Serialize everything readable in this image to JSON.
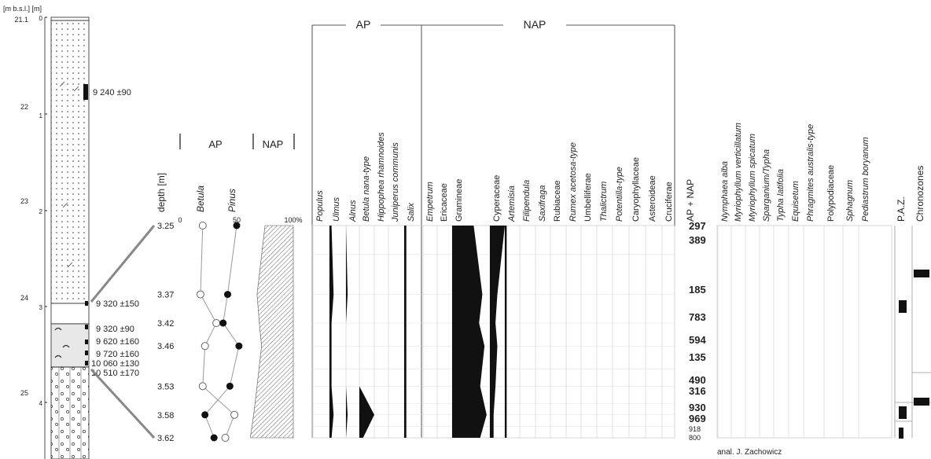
{
  "chart_data": {
    "type": "pollen-diagram",
    "core": {
      "depth_axis_label": "[m b.s.l.] [m]",
      "absolute_depths": [
        "21.1",
        "22",
        "23",
        "24",
        "25"
      ],
      "core_depths": [
        "0",
        "1",
        "2",
        "3",
        "4"
      ],
      "dates": [
        "9 240 ±90",
        "9 320 ±150",
        "9 320 ±90",
        "9 620 ±160",
        "9 720 ±160",
        "10 060 ±130",
        "10 510 ±170"
      ]
    },
    "ap_nap": {
      "ap_label": "AP",
      "nap_label": "NAP",
      "depth_label": "depth [m]",
      "betula_label": "Betula",
      "pinus_label": "Pinus",
      "ticks": [
        "0",
        "50",
        "100%"
      ],
      "depth_labels": [
        "3.25",
        "3.37",
        "3.42",
        "3.46",
        "3.53",
        "3.58",
        "3.62"
      ],
      "depth_values": [
        3.25,
        3.37,
        3.42,
        3.46,
        3.53,
        3.58,
        3.62
      ],
      "betula": [
        {
          "depth": 3.25,
          "value": 20
        },
        {
          "depth": 3.37,
          "value": 18
        },
        {
          "depth": 3.42,
          "value": 32
        },
        {
          "depth": 3.46,
          "value": 22
        },
        {
          "depth": 3.53,
          "value": 20
        },
        {
          "depth": 3.58,
          "value": 48
        },
        {
          "depth": 3.62,
          "value": 40
        }
      ],
      "pinus": [
        {
          "depth": 3.25,
          "value": 50
        },
        {
          "depth": 3.37,
          "value": 42
        },
        {
          "depth": 3.42,
          "value": 38
        },
        {
          "depth": 3.46,
          "value": 52
        },
        {
          "depth": 3.53,
          "value": 44
        },
        {
          "depth": 3.58,
          "value": 22
        },
        {
          "depth": 3.62,
          "value": 30
        }
      ],
      "ap_percent": [
        55,
        48,
        50,
        52,
        48,
        45,
        42
      ]
    },
    "groups": {
      "ap": "AP",
      "nap": "NAP"
    },
    "taxa": [
      {
        "name": "Populus",
        "italic": true,
        "group": "AP",
        "values": [
          0,
          0,
          0,
          0,
          0,
          0,
          0
        ]
      },
      {
        "name": "Ulmus",
        "italic": true,
        "group": "AP",
        "values": [
          1,
          2,
          1,
          1,
          1,
          2,
          1
        ]
      },
      {
        "name": "Alnus",
        "italic": true,
        "group": "AP",
        "values": [
          0,
          1,
          0,
          0,
          0,
          1,
          0
        ]
      },
      {
        "name": "Betula nana-type",
        "italic": true,
        "group": "AP",
        "values": [
          0,
          0,
          0,
          0,
          0,
          8,
          2
        ]
      },
      {
        "name": "Hippophea rhamnoides",
        "italic": true,
        "group": "AP",
        "values": [
          0,
          0,
          0,
          0,
          0,
          0,
          0
        ]
      },
      {
        "name": "Juniperus communis",
        "italic": true,
        "group": "AP",
        "values": [
          0,
          0,
          0,
          0,
          0,
          0,
          0
        ]
      },
      {
        "name": "Salix",
        "italic": true,
        "group": "AP",
        "values": [
          1,
          1,
          1,
          1,
          1,
          1,
          1
        ]
      },
      {
        "name": "Empetrum",
        "italic": true,
        "group": "NAP",
        "values": [
          0,
          0,
          0,
          0,
          0,
          0,
          0
        ]
      },
      {
        "name": "Ericaceae",
        "italic": false,
        "group": "NAP",
        "values": [
          0,
          0,
          0,
          0,
          0,
          0,
          0
        ]
      },
      {
        "name": "Gramineae",
        "italic": false,
        "group": "NAP",
        "values": [
          20,
          28,
          25,
          30,
          26,
          32,
          26
        ]
      },
      {
        "name": "Cyperaceae",
        "italic": false,
        "group": "NAP",
        "values": [
          8,
          4,
          3,
          4,
          3,
          2,
          2
        ]
      },
      {
        "name": "Artemisia",
        "italic": true,
        "group": "NAP",
        "values": [
          1,
          1,
          1,
          1,
          1,
          1,
          1
        ]
      },
      {
        "name": "Filipendula",
        "italic": true,
        "group": "NAP",
        "values": [
          0,
          0,
          0,
          0,
          0,
          0,
          0
        ]
      },
      {
        "name": "Saxifraga",
        "italic": true,
        "group": "NAP",
        "values": [
          0,
          0,
          0,
          0,
          0,
          0,
          0
        ]
      },
      {
        "name": "Rubiaceae",
        "italic": false,
        "group": "NAP",
        "values": [
          0,
          0,
          0,
          0,
          0,
          0,
          0
        ]
      },
      {
        "name": "Rumex acetosa-type",
        "italic": true,
        "group": "NAP",
        "values": [
          0,
          0,
          0,
          0,
          0,
          0,
          0
        ]
      },
      {
        "name": "Umbelliferae",
        "italic": false,
        "group": "NAP",
        "values": [
          0,
          0,
          0,
          0,
          0,
          0,
          0
        ]
      },
      {
        "name": "Thalictrum",
        "italic": true,
        "group": "NAP",
        "values": [
          0,
          0,
          0,
          0,
          0,
          0,
          0
        ]
      },
      {
        "name": "Potentilla-type",
        "italic": true,
        "group": "NAP",
        "values": [
          0,
          0,
          0,
          0,
          0,
          0,
          0
        ]
      },
      {
        "name": "Caryophyllaceae",
        "italic": false,
        "group": "NAP",
        "values": [
          0,
          0,
          0,
          0,
          0,
          0,
          0
        ]
      },
      {
        "name": "Asteroideae",
        "italic": false,
        "group": "NAP",
        "values": [
          0,
          0,
          0,
          0,
          0,
          0,
          0
        ]
      },
      {
        "name": "Cruciferae",
        "italic": false,
        "group": "NAP",
        "values": [
          0,
          0,
          0,
          0,
          0,
          0,
          0
        ]
      }
    ],
    "sums": {
      "label": "AP + NAP",
      "values": [
        "297",
        "389",
        "185",
        "783",
        "594",
        "135",
        "490",
        "316",
        "930",
        "969",
        "918",
        "800"
      ]
    },
    "aquatics": [
      {
        "name": "Nymphaea alba",
        "italic": true
      },
      {
        "name": "Myriophyllum verticillatum",
        "italic": true
      },
      {
        "name": "Myriophyllum spicatum",
        "italic": true
      },
      {
        "name": "Sparganium/Typha",
        "italic": true
      },
      {
        "name": "Typha latifolia",
        "italic": true
      },
      {
        "name": "Equisetum",
        "italic": true
      },
      {
        "name": "Phragmites australis-type",
        "italic": true
      },
      {
        "name": "Polypodiaceae",
        "italic": false
      },
      {
        "name": "Sphagnum",
        "italic": true
      },
      {
        "name": "Pediastrum boryanum",
        "italic": true
      }
    ],
    "zones": {
      "paz_label": "P.A.Z.",
      "chrono_label": "Chronozones"
    },
    "credit": "anal. J. Zachowicz"
  }
}
